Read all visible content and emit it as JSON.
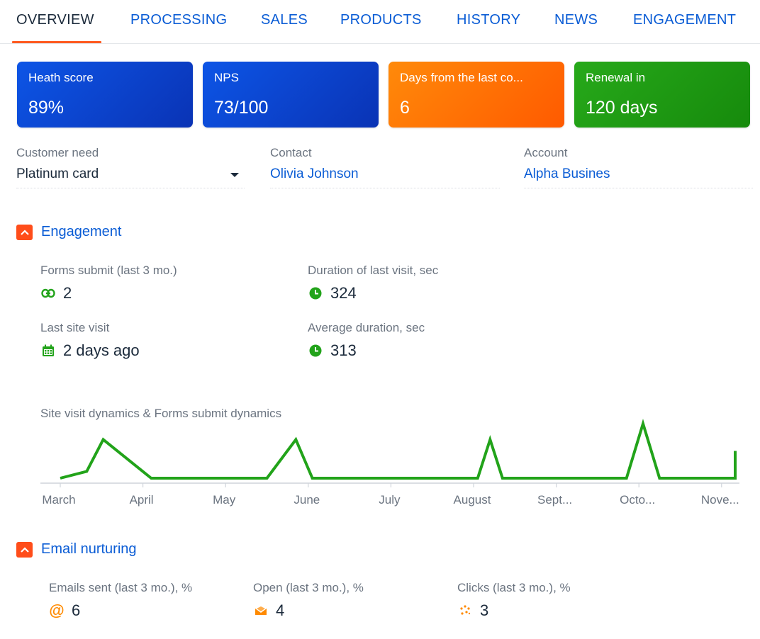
{
  "tabs": [
    {
      "label": "OVERVIEW",
      "active": true
    },
    {
      "label": "PROCESSING"
    },
    {
      "label": "SALES"
    },
    {
      "label": "PRODUCTS"
    },
    {
      "label": "HISTORY"
    },
    {
      "label": "NEWS"
    },
    {
      "label": "ENGAGEMENT"
    }
  ],
  "cards": [
    {
      "label": "Heath score",
      "value": "89%",
      "color": "#0a3fc7"
    },
    {
      "label": "NPS",
      "value": "73/100",
      "color": "#0a3fc7"
    },
    {
      "label": "Days from the last co...",
      "value": "6",
      "color": "#ff6a0a"
    },
    {
      "label": "Renewal in",
      "value": "120 days",
      "color": "#1f9a12"
    }
  ],
  "fields": {
    "customer_need": {
      "label": "Customer need",
      "value": "Platinum card"
    },
    "contact": {
      "label": "Contact",
      "value": "Olivia Johnson"
    },
    "account": {
      "label": "Account",
      "value": "Alpha Busines"
    }
  },
  "engagement": {
    "title": "Engagement",
    "metrics": {
      "forms_submit": {
        "label": "Forms submit (last 3 mo.)",
        "value": "2",
        "icon": "link-icon"
      },
      "duration_last": {
        "label": "Duration of last visit, sec",
        "value": "324",
        "icon": "clock-icon"
      },
      "last_visit": {
        "label": "Last site visit",
        "value": "2 days ago",
        "icon": "calendar-icon"
      },
      "avg_duration": {
        "label": "Average duration, sec",
        "value": "313",
        "icon": "clock-icon"
      }
    }
  },
  "chart_data": {
    "type": "line",
    "title": "Site visit dynamics & Forms submit dynamics",
    "categories": [
      "March",
      "April",
      "May",
      "June",
      "July",
      "August",
      "Sept...",
      "Octo...",
      "Nove..."
    ],
    "series": [
      {
        "color": "#22a31a",
        "points": [
          {
            "x": 0.0,
            "y": 0.0
          },
          {
            "x": 0.32,
            "y": 0.15
          },
          {
            "x": 0.52,
            "y": 0.85
          },
          {
            "x": 1.1,
            "y": 0.0
          },
          {
            "x": 2.5,
            "y": 0.0
          },
          {
            "x": 2.85,
            "y": 0.85
          },
          {
            "x": 3.05,
            "y": 0.0
          },
          {
            "x": 5.05,
            "y": 0.0
          },
          {
            "x": 5.2,
            "y": 0.85
          },
          {
            "x": 5.35,
            "y": 0.0
          },
          {
            "x": 6.85,
            "y": 0.0
          },
          {
            "x": 7.05,
            "y": 1.2
          },
          {
            "x": 7.25,
            "y": 0.0
          },
          {
            "x": 8.2,
            "y": 0.0
          },
          {
            "x": 8.25,
            "y": 0.6
          },
          {
            "x": 8.35,
            "y": 0.3
          }
        ]
      }
    ],
    "ylim": [
      0,
      1.2
    ]
  },
  "email": {
    "title": "Email nurturing",
    "metrics": {
      "emails_sent": {
        "label": "Emails sent (last 3 mo.), %",
        "value": "6",
        "icon": "at-icon"
      },
      "open": {
        "label": "Open (last 3 mo.), %",
        "value": "4",
        "icon": "envelope-open-icon"
      },
      "clicks": {
        "label": "Clicks (last 3 mo.), %",
        "value": "3",
        "icon": "click-icon"
      }
    }
  },
  "colors": {
    "accent": "#ff5a1f",
    "link": "#0a5cd5",
    "green": "#22a31a",
    "orange": "#ff8a00"
  }
}
